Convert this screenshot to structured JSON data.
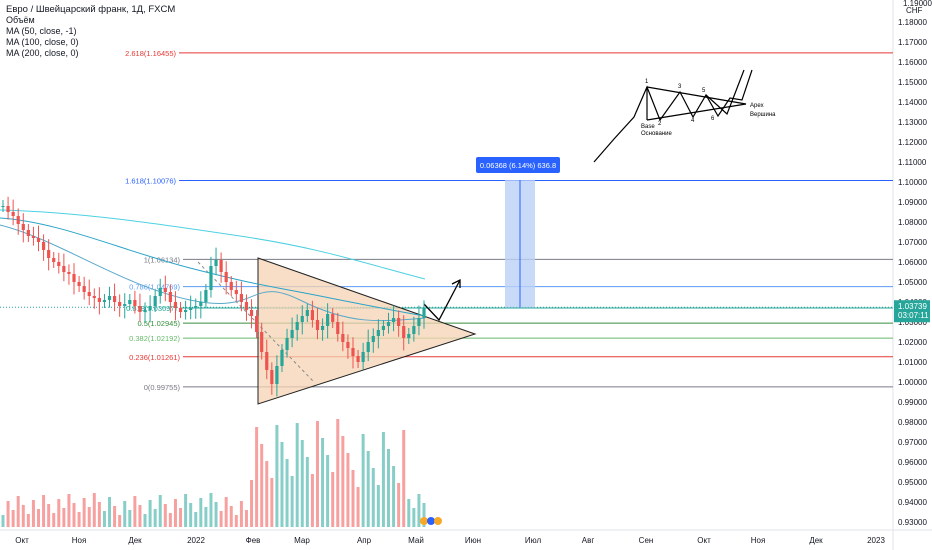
{
  "legend": {
    "title": "Евро / Швейцарский франк, 1Д, FXCM",
    "volume": "Объём",
    "ma50": "MA (50, close, -1)",
    "ma100": "MA (100, close, 0)",
    "ma200": "MA (200, close, 0)"
  },
  "axis": {
    "currency": "CHF",
    "top_partial": "1.19000",
    "price_ticks": [
      1.18,
      1.17,
      1.16,
      1.15,
      1.14,
      1.13,
      1.12,
      1.11,
      1.1,
      1.09,
      1.08,
      1.07,
      1.06,
      1.05,
      1.04,
      1.03,
      1.02,
      1.01,
      1.0,
      0.99,
      0.98,
      0.97,
      0.96,
      0.95,
      0.94,
      0.93
    ],
    "ylim": [
      0.93,
      1.19
    ],
    "time_ticks": [
      "Окт",
      "Ноя",
      "Дек",
      "2022",
      "Фев",
      "Мар",
      "Апр",
      "Май",
      "Июн",
      "Июл",
      "Авг",
      "Сен",
      "Окт",
      "Ноя",
      "Дек",
      "2023"
    ],
    "current_price": "1.03739",
    "countdown": "03:07:11"
  },
  "fib": [
    {
      "label": "2.618(1.16455)",
      "value": 1.16455,
      "color": "#e53935"
    },
    {
      "label": "1.618(1.10076)",
      "value": 1.10076,
      "color": "#2962ff"
    },
    {
      "label": "1(1.06134)",
      "value": 1.06134,
      "color": "#787b86"
    },
    {
      "label": "0.786(1.04769)",
      "value": 1.04769,
      "color": "#5b9cf6"
    },
    {
      "label": "0.618(1.03697)",
      "value": 1.03697,
      "color": "#26a69a"
    },
    {
      "label": "0.5(1.02945)",
      "value": 1.02945,
      "color": "#388e3c"
    },
    {
      "label": "0.382(1.02192)",
      "value": 1.02192,
      "color": "#66bb6a"
    },
    {
      "label": "0.236(1.01261)",
      "value": 1.01261,
      "color": "#e53935"
    },
    {
      "label": "0(0.99755)",
      "value": 0.99755,
      "color": "#787b86"
    }
  ],
  "measure": {
    "label": "0.06368 (6.14%) 636.8",
    "from": 1.0373,
    "to": 1.10098
  },
  "pattern": {
    "points": [
      "1",
      "2",
      "3",
      "4",
      "5",
      "6"
    ],
    "apex": "Apex",
    "apex_ru": "Вершина",
    "base": "Base",
    "base_ru": "Основание"
  },
  "colors": {
    "up": "#26a69a",
    "down": "#ef5350",
    "triangle_fill": "#f5d3b3",
    "ma50": "#2aa3c9",
    "ma200": "#4dd0e1",
    "measure_fill": "#bbd1f8"
  },
  "chart_data": {
    "type": "candlestick",
    "title": "Евро / Швейцарский франк, 1Д, FXCM",
    "ylim": [
      0.93,
      1.19
    ],
    "x_categories": [
      "Окт",
      "Ноя",
      "Дек",
      "2022",
      "Фев",
      "Мар",
      "Апр",
      "Май"
    ],
    "close_path": [
      1.088,
      1.085,
      1.083,
      1.079,
      1.076,
      1.073,
      1.072,
      1.07,
      1.066,
      1.062,
      1.06,
      1.058,
      1.055,
      1.054,
      1.05,
      1.048,
      1.045,
      1.043,
      1.042,
      1.04,
      1.041,
      1.043,
      1.04,
      1.038,
      1.039,
      1.041,
      1.038,
      1.035,
      1.036,
      1.038,
      1.043,
      1.047,
      1.045,
      1.04,
      1.037,
      1.035,
      1.036,
      1.037,
      1.038,
      1.04,
      1.046,
      1.058,
      1.061,
      1.055,
      1.05,
      1.046,
      1.044,
      1.04,
      1.036,
      1.033,
      1.025,
      1.015,
      1.006,
      0.999,
      1.008,
      1.016,
      1.022,
      1.026,
      1.03,
      1.033,
      1.036,
      1.031,
      1.026,
      1.028,
      1.034,
      1.03,
      1.024,
      1.02,
      1.017,
      1.013,
      1.01,
      1.015,
      1.02,
      1.023,
      1.026,
      1.028,
      1.03,
      1.032,
      1.028,
      1.022,
      1.024,
      1.028,
      1.032,
      1.037
    ],
    "current_price": 1.03739
  }
}
